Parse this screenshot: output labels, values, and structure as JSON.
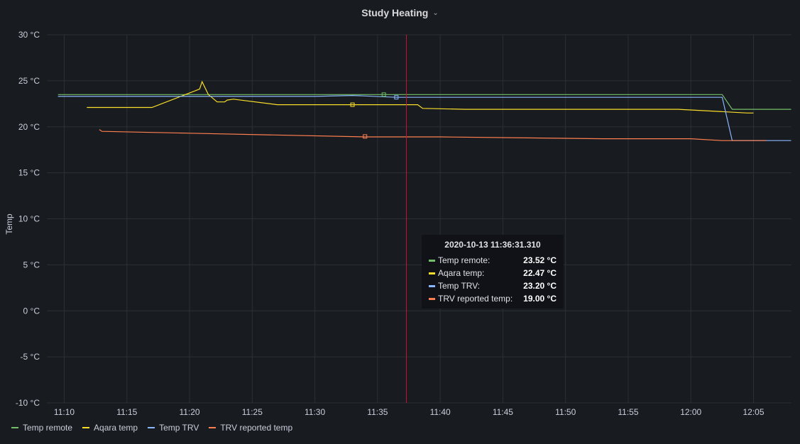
{
  "panel": {
    "title": "Study Heating"
  },
  "chart_data": {
    "type": "line",
    "ylabel": "Temp",
    "ylim": [
      -10,
      30
    ],
    "yticks": [
      "30 °C",
      "25 °C",
      "20 °C",
      "15 °C",
      "10 °C",
      "5 °C",
      "0 °C",
      "-5 °C",
      "-10 °C"
    ],
    "ytick_values": [
      30,
      25,
      20,
      15,
      10,
      5,
      0,
      -5,
      -10
    ],
    "xticks": [
      "11:10",
      "11:15",
      "11:20",
      "11:25",
      "11:30",
      "11:35",
      "11:40",
      "11:45",
      "11:50",
      "11:55",
      "12:00",
      "12:05"
    ],
    "xtick_minutes": [
      670,
      675,
      680,
      685,
      690,
      695,
      700,
      705,
      710,
      715,
      720,
      725
    ],
    "xlim": [
      669,
      728
    ],
    "cursor_minute": 697.3,
    "series": [
      {
        "name": "Temp remote",
        "color": "#73bf69",
        "points": [
          [
            669.5,
            23.5
          ],
          [
            695.5,
            23.5
          ],
          [
            702,
            23.5
          ],
          [
            715,
            23.5
          ],
          [
            722.5,
            23.5
          ],
          [
            723.3,
            21.9
          ],
          [
            728,
            21.9
          ]
        ]
      },
      {
        "name": "Aqara temp",
        "color": "#fade2a",
        "points": [
          [
            671.8,
            22.1
          ],
          [
            677,
            22.1
          ],
          [
            680.8,
            24.1
          ],
          [
            681,
            24.9
          ],
          [
            681.5,
            23.5
          ],
          [
            682.2,
            22.7
          ],
          [
            682.8,
            22.7
          ],
          [
            683,
            22.9
          ],
          [
            683.5,
            23.0
          ],
          [
            687,
            22.4
          ],
          [
            692,
            22.4
          ],
          [
            698.2,
            22.4
          ],
          [
            698.6,
            22.0
          ],
          [
            702,
            21.9
          ],
          [
            710,
            21.9
          ],
          [
            719,
            21.9
          ],
          [
            724.5,
            21.5
          ],
          [
            725,
            21.5
          ]
        ]
      },
      {
        "name": "Temp TRV",
        "color": "#8ab8ff",
        "points": [
          [
            669.5,
            23.3
          ],
          [
            690,
            23.3
          ],
          [
            693,
            23.4
          ],
          [
            696.5,
            23.2
          ],
          [
            722,
            23.2
          ],
          [
            722.5,
            23.2
          ],
          [
            723.3,
            18.5
          ],
          [
            728,
            18.5
          ]
        ]
      },
      {
        "name": "TRV reported temp",
        "color": "#ff7f50",
        "points": [
          [
            672.8,
            19.7
          ],
          [
            673,
            19.5
          ],
          [
            680,
            19.3
          ],
          [
            694,
            18.9
          ],
          [
            700,
            18.9
          ],
          [
            713,
            18.7
          ],
          [
            720,
            18.7
          ],
          [
            722.5,
            18.5
          ],
          [
            726,
            18.5
          ]
        ]
      }
    ]
  },
  "tooltip": {
    "time": "2020-10-13 11:36:31.310",
    "rows": [
      {
        "label": "Temp remote:",
        "value": "23.52 °C",
        "color": "#73bf69"
      },
      {
        "label": "Aqara temp:",
        "value": "22.47 °C",
        "color": "#fade2a"
      },
      {
        "label": "Temp TRV:",
        "value": "23.20 °C",
        "color": "#8ab8ff"
      },
      {
        "label": "TRV reported temp:",
        "value": "19.00 °C",
        "color": "#ff7f50"
      }
    ]
  },
  "legend": [
    {
      "label": "Temp remote",
      "color": "#73bf69"
    },
    {
      "label": "Aqara temp",
      "color": "#fade2a"
    },
    {
      "label": "Temp TRV",
      "color": "#8ab8ff"
    },
    {
      "label": "TRV reported temp",
      "color": "#ff7f50"
    }
  ]
}
